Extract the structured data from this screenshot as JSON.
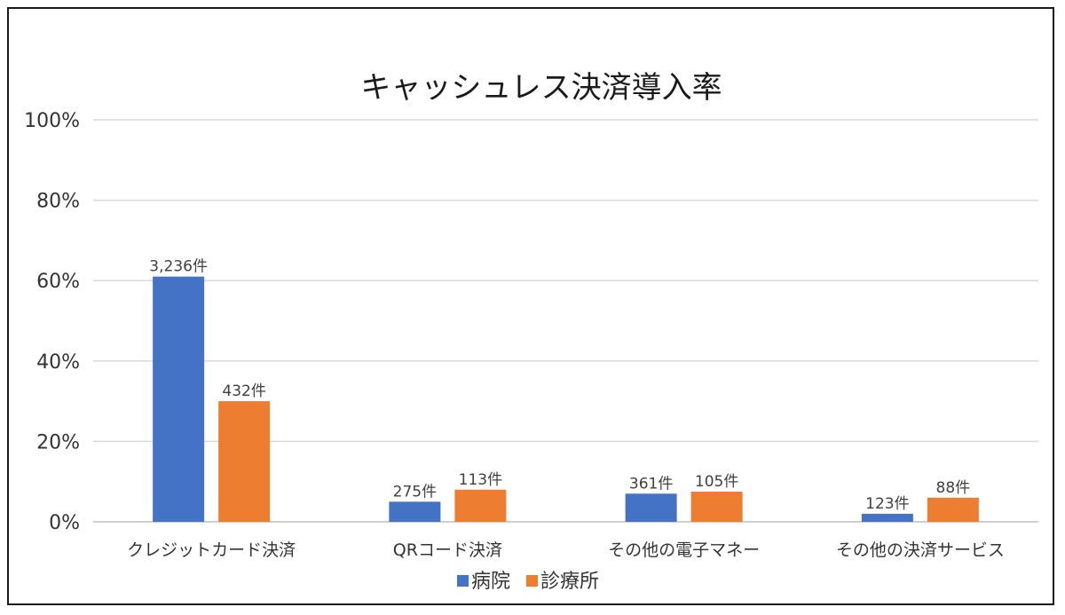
{
  "chart_data": {
    "type": "bar",
    "title": "キャッシュレス決済導入率",
    "categories": [
      "クレジットカード決済",
      "QRコード決済",
      "その他の電子マネー",
      "その他の決済サービス"
    ],
    "series": [
      {
        "name": "病院",
        "values": [
          61,
          5,
          7,
          2
        ],
        "labels": [
          "3,236件",
          "275件",
          "361件",
          "123件"
        ]
      },
      {
        "name": "診療所",
        "values": [
          30,
          8,
          7.5,
          6
        ],
        "labels": [
          "432件",
          "113件",
          "105件",
          "88件"
        ]
      }
    ],
    "yticks": [
      "0%",
      "20%",
      "40%",
      "60%",
      "80%",
      "100%"
    ],
    "ylim": [
      0,
      100
    ],
    "grid": true,
    "legend": "bottom",
    "colors": {
      "病院": "#4472c4",
      "診療所": "#ed7d31",
      "grid": "#d9d9d9",
      "axis": "#bfbfbf"
    }
  }
}
